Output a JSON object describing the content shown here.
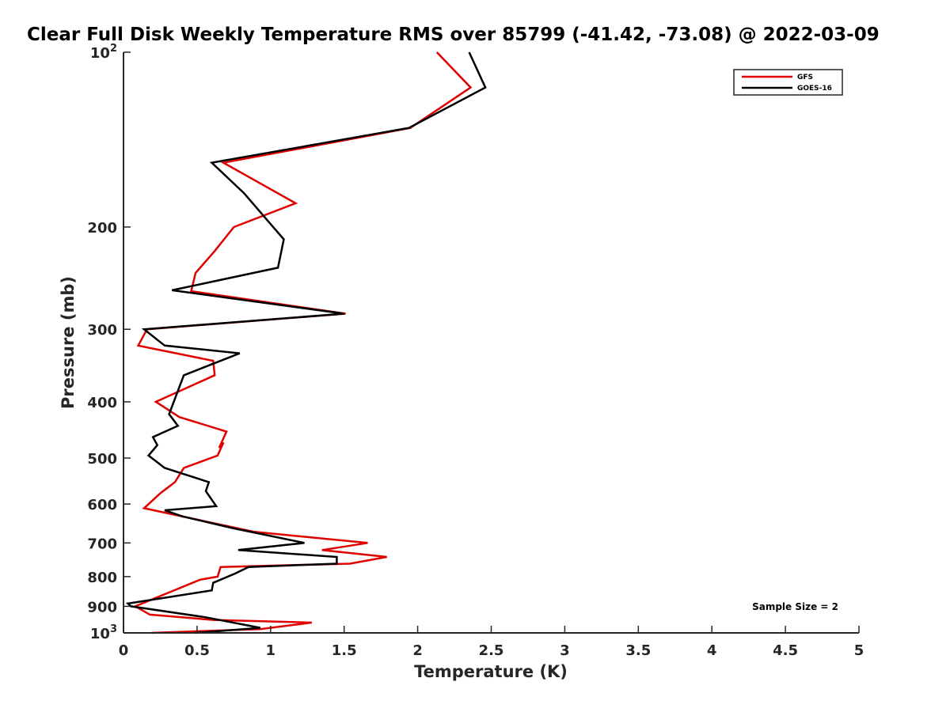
{
  "chart_data": {
    "type": "line",
    "title": "Clear Full Disk Weekly Temperature RMS over 85799 (-41.42, -73.08) @ 2022-03-09",
    "xlabel": "Temperature (K)",
    "ylabel": "Pressure (mb)",
    "xlim": [
      0,
      5
    ],
    "ylim": [
      100,
      1000
    ],
    "y_scale": "log",
    "y_reversed": true,
    "x_ticks": [
      "0",
      "0.5",
      "1",
      "1.5",
      "2",
      "2.5",
      "3",
      "3.5",
      "4",
      "4.5",
      "5"
    ],
    "y_ticks": [
      {
        "value": 100,
        "base": "10",
        "exp": "2"
      },
      {
        "value": 200,
        "label": "200"
      },
      {
        "value": 300,
        "label": "300"
      },
      {
        "value": 400,
        "label": "400"
      },
      {
        "value": 500,
        "label": "500"
      },
      {
        "value": 600,
        "label": "600"
      },
      {
        "value": 700,
        "label": "700"
      },
      {
        "value": 800,
        "label": "800"
      },
      {
        "value": 900,
        "label": "900"
      },
      {
        "value": 1000,
        "base": "10",
        "exp": "3"
      }
    ],
    "grid": false,
    "legend_position": "top-right",
    "series": [
      {
        "name": "GFS",
        "color": "#e00000",
        "x": [
          2.13,
          2.36,
          1.95,
          0.68,
          1.17,
          0.75,
          0.62,
          0.49,
          0.46,
          1.51,
          0.16,
          0.1,
          0.61,
          0.62,
          0.22,
          0.38,
          0.7,
          0.65,
          0.68,
          0.64,
          0.41,
          0.35,
          0.25,
          0.14,
          0.89,
          1.66,
          1.35,
          1.79,
          1.54,
          0.66,
          0.64,
          0.52,
          0.08,
          0.18,
          0.61,
          1.28,
          0.93,
          0.19
        ],
        "y": [
          100,
          115,
          135,
          155,
          182,
          200,
          220,
          240,
          258,
          282,
          300,
          320,
          340,
          360,
          400,
          425,
          450,
          480,
          470,
          495,
          520,
          550,
          575,
          610,
          670,
          700,
          720,
          740,
          760,
          770,
          800,
          810,
          900,
          930,
          950,
          960,
          985,
          1000
        ]
      },
      {
        "name": "GOES-16",
        "color": "#000000",
        "x": [
          2.35,
          2.46,
          1.94,
          0.6,
          0.82,
          0.98,
          1.09,
          1.05,
          0.33,
          1.5,
          0.14,
          0.28,
          0.79,
          0.41,
          0.31,
          0.37,
          0.2,
          0.23,
          0.17,
          0.28,
          0.58,
          0.56,
          0.63,
          0.28,
          0.4,
          0.74,
          1.23,
          0.78,
          1.45,
          1.45,
          0.85,
          0.76,
          0.61,
          0.6,
          0.03,
          0.05,
          0.56,
          0.93,
          0.49
        ],
        "y": [
          100,
          115,
          135,
          155,
          175,
          195,
          210,
          235,
          257,
          282,
          300,
          320,
          330,
          360,
          420,
          440,
          460,
          475,
          495,
          520,
          550,
          570,
          605,
          615,
          630,
          660,
          700,
          720,
          740,
          760,
          770,
          790,
          820,
          845,
          890,
          900,
          940,
          980,
          1000
        ]
      }
    ],
    "annotations": [
      "Sample Size = 2"
    ]
  }
}
